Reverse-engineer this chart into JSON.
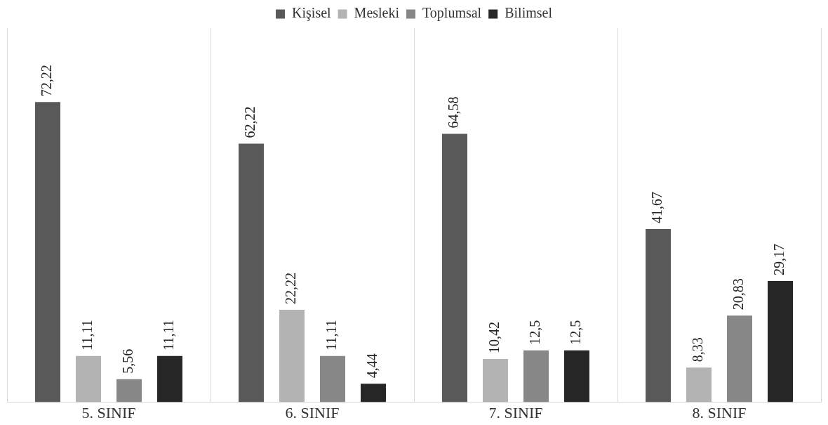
{
  "chart_data": {
    "type": "bar",
    "categories": [
      "5. SINIF",
      "6. SINIF",
      "7. SINIF",
      "8. SINIF"
    ],
    "series": [
      {
        "name": "Kişisel",
        "color": "#595959",
        "values": [
          72.22,
          62.22,
          64.58,
          41.67
        ],
        "value_labels": [
          "72,22",
          "62,22",
          "64,58",
          "41,67"
        ]
      },
      {
        "name": "Mesleki",
        "color": "#b3b3b3",
        "values": [
          11.11,
          22.22,
          10.42,
          8.33
        ],
        "value_labels": [
          "11,11",
          "22,22",
          "10,42",
          "8,33"
        ]
      },
      {
        "name": "Toplumsal",
        "color": "#878787",
        "values": [
          5.56,
          11.11,
          12.5,
          20.83
        ],
        "value_labels": [
          "5,56",
          "11,11",
          "12,5",
          "20,83"
        ]
      },
      {
        "name": "Bilimsel",
        "color": "#262626",
        "values": [
          11.11,
          4.44,
          12.5,
          29.17
        ],
        "value_labels": [
          "11,11",
          "4,44",
          "12,5",
          "29,17"
        ]
      }
    ],
    "legend": "top",
    "grid": "x",
    "tick_labels": "x"
  }
}
